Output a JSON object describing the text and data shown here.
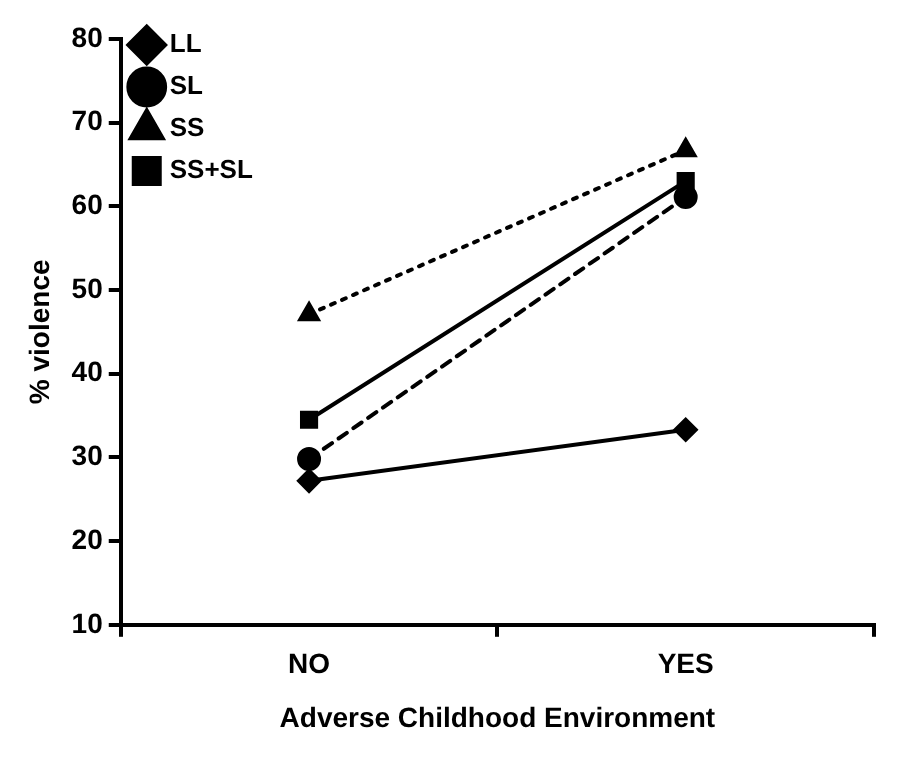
{
  "chart_data": {
    "type": "line",
    "xlabel": "Adverse Childhood Environment",
    "ylabel": "% violence",
    "categories": [
      "NO",
      "YES"
    ],
    "series": [
      {
        "name": "LL",
        "color": "#000000",
        "values": [
          27.2,
          33.3
        ],
        "marker": "diamond",
        "line_style": "solid"
      },
      {
        "name": "SL",
        "color": "#000000",
        "values": [
          29.8,
          61.1
        ],
        "marker": "circle",
        "line_style": "dashed"
      },
      {
        "name": "SS",
        "color": "#000000",
        "values": [
          47.1,
          66.7
        ],
        "marker": "triangle",
        "line_style": "dotted"
      },
      {
        "name": "SS+SL",
        "color": "#000000",
        "values": [
          34.5,
          63
        ],
        "marker": "square",
        "line_style": "solid"
      }
    ],
    "ylim": [
      10,
      80
    ],
    "yticks": [
      10,
      20,
      30,
      40,
      50,
      60,
      70,
      80
    ],
    "legend": "top left"
  }
}
